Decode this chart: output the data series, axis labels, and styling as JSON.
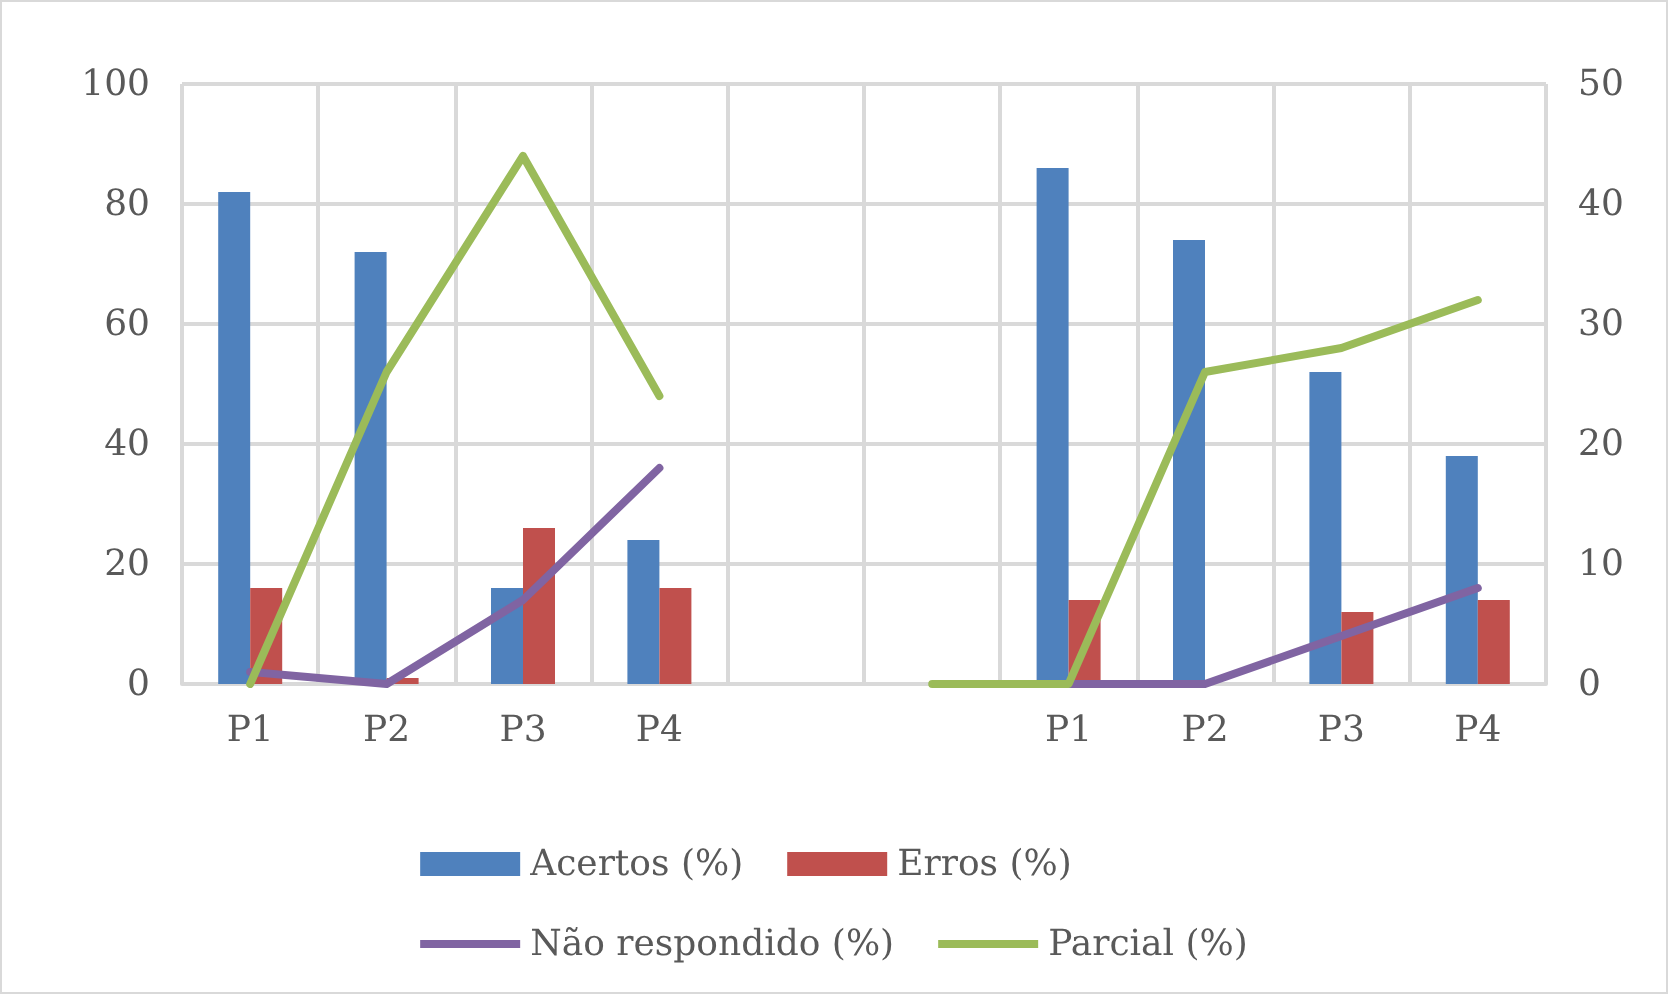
{
  "chart_data": {
    "type": "bar",
    "categories": [
      "P1",
      "P2",
      "P3",
      "P4",
      null,
      null,
      "P1",
      "P2",
      "P3",
      "P4"
    ],
    "series": [
      {
        "name": "Acertos (%)",
        "color": "#4f81bd",
        "values": [
          82,
          72,
          16,
          24,
          null,
          null,
          86,
          74,
          52,
          38
        ]
      },
      {
        "name": "Erros (%)",
        "color": "#c0504d",
        "values": [
          16,
          1,
          26,
          16,
          null,
          null,
          14,
          null,
          12,
          14
        ]
      },
      {
        "name": "Não respondido (%)",
        "type": "line",
        "axis": "y2",
        "color": "#8064a2",
        "values": [
          1,
          0,
          7,
          18,
          null,
          null,
          0,
          0,
          4,
          8
        ]
      },
      {
        "name": "Parcial (%)",
        "type": "line",
        "axis": "y2",
        "color": "#9bbb59",
        "values": [
          0,
          26,
          44,
          24,
          null,
          0,
          0,
          26,
          28,
          32
        ]
      }
    ],
    "ylim": [
      0,
      100
    ],
    "yticks": [
      0,
      20,
      40,
      60,
      80,
      100
    ],
    "y2lim": [
      0,
      50
    ],
    "y2ticks": [
      0,
      10,
      20,
      30,
      40,
      50
    ],
    "grid": true,
    "legend": "bottom",
    "marker": "none",
    "line_style": "solid"
  }
}
